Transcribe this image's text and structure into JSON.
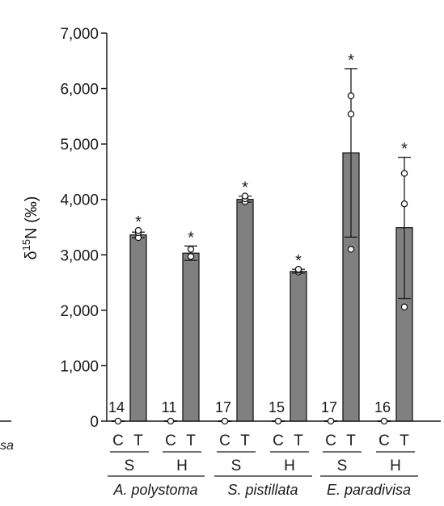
{
  "chart_data": {
    "type": "bar",
    "ylabel_prefix": "δ",
    "ylabel_sup": "15",
    "ylabel_suffix": "N (‰)",
    "ylim": [
      0,
      7000
    ],
    "yticks": [
      "0",
      "1,000",
      "2,000",
      "3,000",
      "4,000",
      "5,000",
      "6,000",
      "7,000"
    ],
    "ytick_values": [
      0,
      1000,
      2000,
      3000,
      4000,
      5000,
      6000,
      7000
    ],
    "species": [
      {
        "name": "A. polystoma",
        "groups": [
          {
            "label": "S",
            "control_value": "14",
            "treatment": {
              "mean": 3360,
              "err_low": 3310,
              "err_high": 3410,
              "points": [
                3310,
                3400,
                3440
              ],
              "star": "*"
            }
          },
          {
            "label": "H",
            "control_value": "11",
            "treatment": {
              "mean": 3030,
              "err_low": 2900,
              "err_high": 3160,
              "points": [
                2970,
                3100
              ],
              "star": "*"
            }
          }
        ]
      },
      {
        "name": "S. pistillata",
        "groups": [
          {
            "label": "S",
            "control_value": "17",
            "treatment": {
              "mean": 4000,
              "err_low": 3950,
              "err_high": 4060,
              "points": [
                3960,
                4010,
                4060
              ],
              "star": "*"
            }
          },
          {
            "label": "H",
            "control_value": "15",
            "treatment": {
              "mean": 2700,
              "err_low": 2670,
              "err_high": 2740,
              "points": [
                2690,
                2720,
                2740
              ],
              "star": "*"
            }
          }
        ]
      },
      {
        "name": "E. paradivisa",
        "groups": [
          {
            "label": "S",
            "control_value": "17",
            "treatment": {
              "mean": 4840,
              "err_low": 3320,
              "err_high": 6360,
              "points": [
                3100,
                5540,
                5870
              ],
              "star": "*"
            }
          },
          {
            "label": "H",
            "control_value": "16",
            "treatment": {
              "mean": 3490,
              "err_low": 2210,
              "err_high": 4760,
              "points": [
                2060,
                3920,
                4470
              ],
              "star": "*"
            }
          }
        ]
      }
    ],
    "control_label": "C",
    "treatment_label": "T",
    "edge_fragment": "sa",
    "bar_color": "#808080"
  }
}
